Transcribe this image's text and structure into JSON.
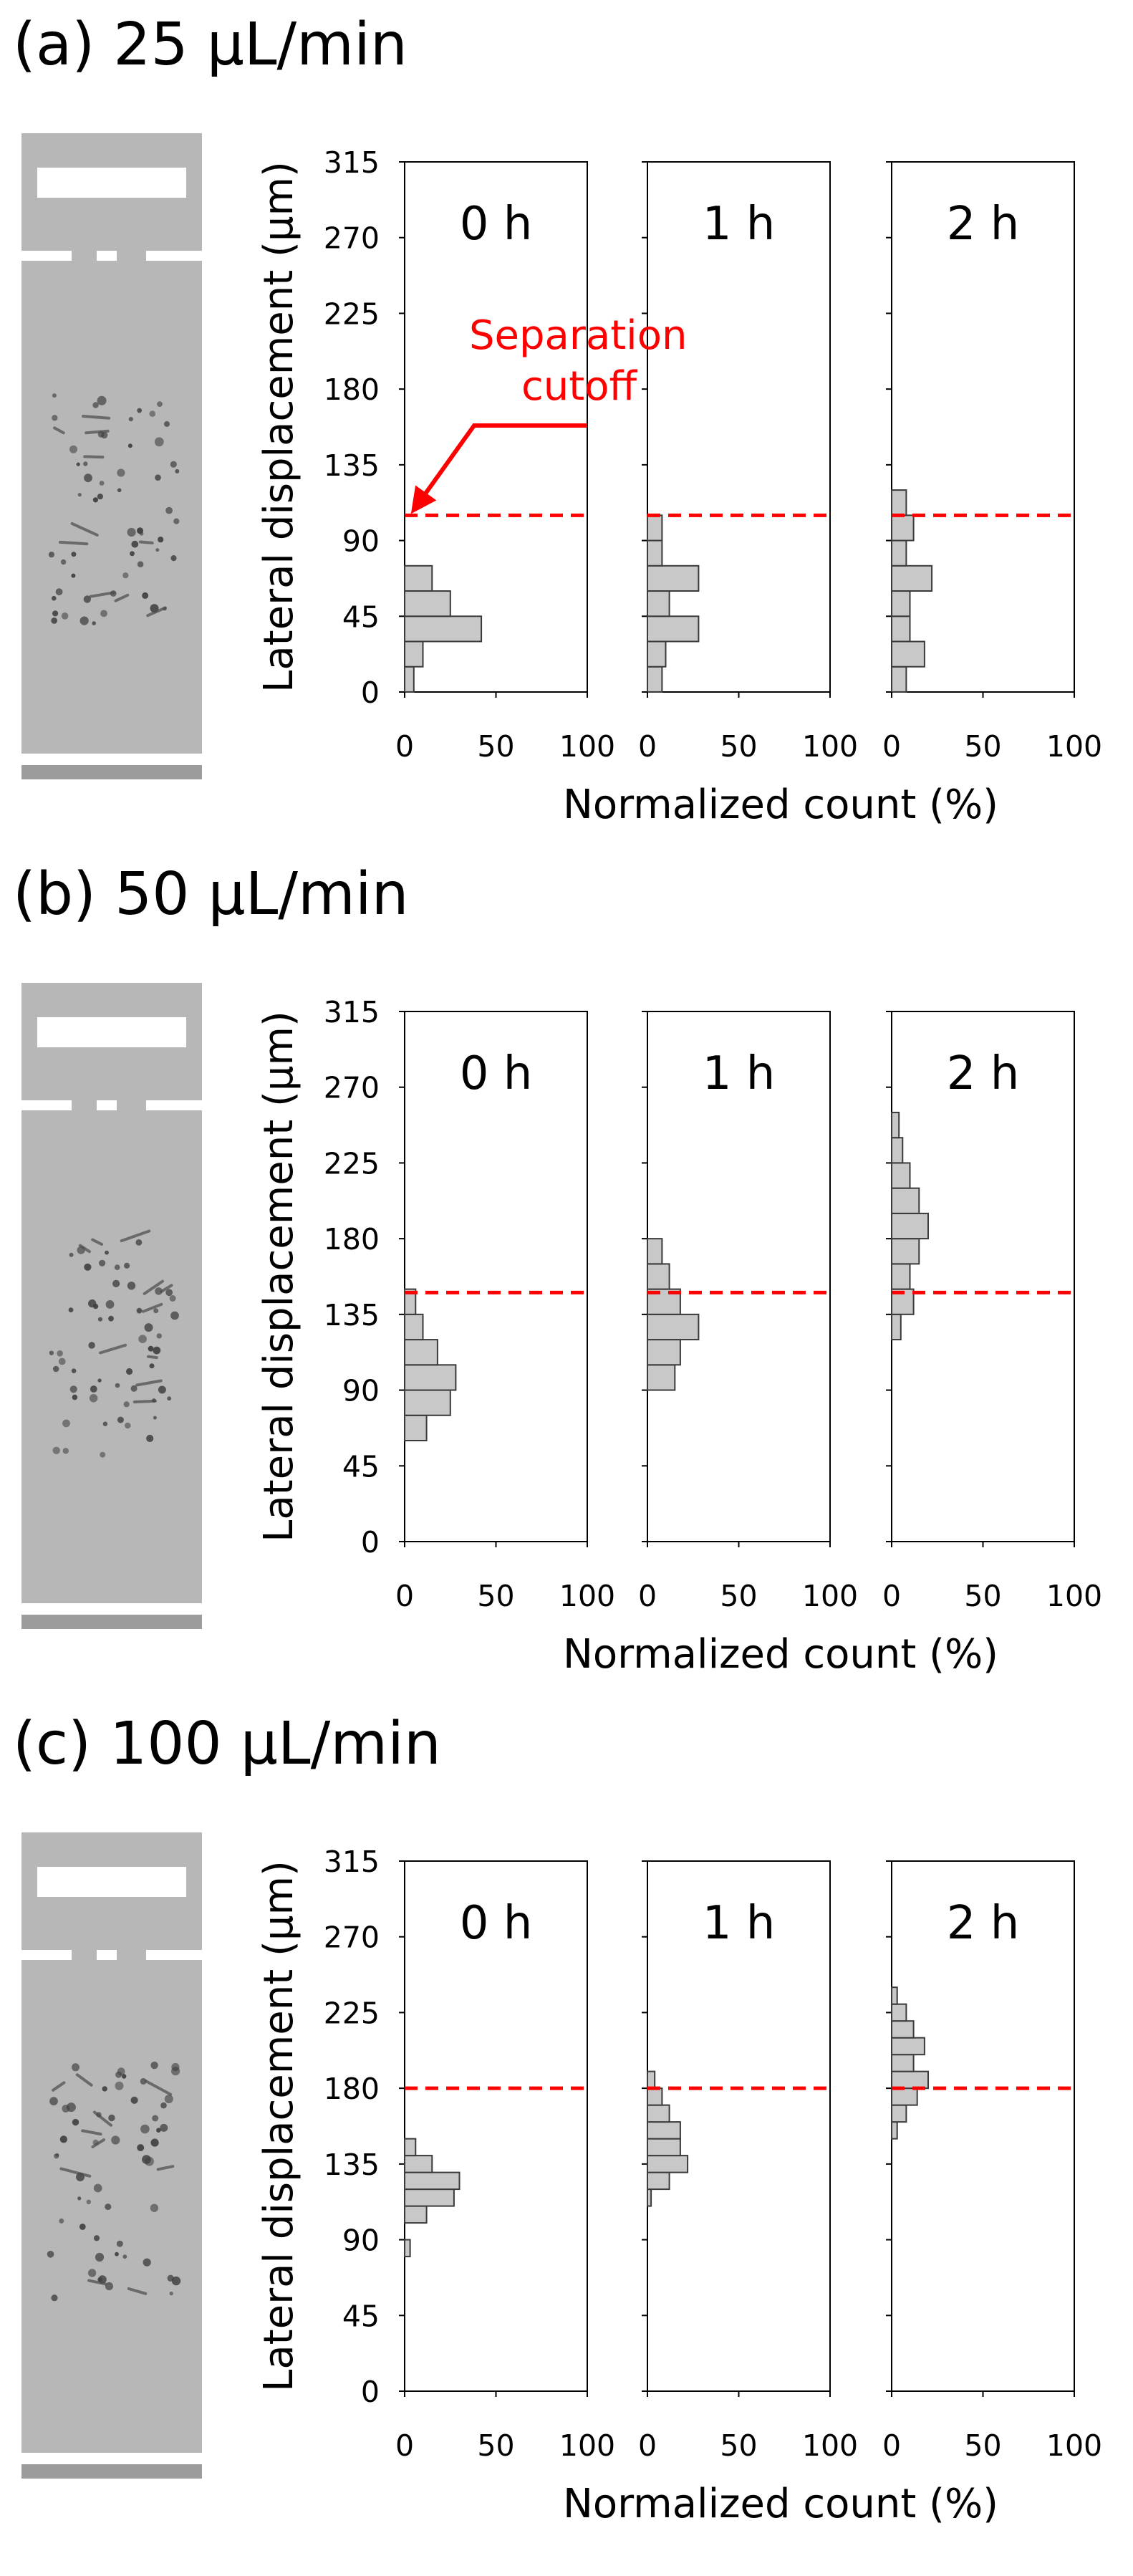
{
  "colors": {
    "bar_fill": "#c8c8c8",
    "bar_stroke": "#3a3a3a",
    "cutoff": "#ff0000",
    "annotation": "#ff0000",
    "image_bg": "#b7b7b7",
    "axis": "#000000"
  },
  "chart_data": [
    {
      "type": "bar",
      "orientation": "horizontal",
      "title": "(a) 25 μL/min",
      "ylabel": "Lateral displacement (μm)",
      "xlabel": "Normalized count (%)",
      "yticks": [
        0,
        45,
        90,
        135,
        180,
        225,
        270,
        315
      ],
      "xticks": [
        0,
        50,
        100
      ],
      "ylim": [
        0,
        315
      ],
      "xlim": [
        0,
        100
      ],
      "bin_width": 15,
      "cutoff": 105,
      "annotation": "Separation cutoff",
      "series": [
        {
          "name": "0 h",
          "bins": [
            0,
            15,
            30,
            45,
            60,
            75,
            90
          ],
          "values": [
            5,
            10,
            42,
            25,
            15,
            0,
            0
          ]
        },
        {
          "name": "1 h",
          "bins": [
            0,
            15,
            30,
            45,
            60,
            75,
            90,
            105,
            120,
            135
          ],
          "values": [
            8,
            10,
            28,
            12,
            28,
            8,
            8,
            0,
            0,
            0
          ]
        },
        {
          "name": "2 h",
          "bins": [
            0,
            15,
            30,
            45,
            60,
            75,
            90,
            105,
            120,
            135,
            150,
            165
          ],
          "values": [
            8,
            18,
            10,
            10,
            22,
            8,
            12,
            8,
            0,
            0,
            0,
            0
          ]
        }
      ]
    },
    {
      "type": "bar",
      "orientation": "horizontal",
      "title": "(b) 50 μL/min",
      "ylabel": "Lateral displacement (μm)",
      "xlabel": "Normalized count (%)",
      "yticks": [
        0,
        45,
        90,
        135,
        180,
        225,
        270,
        315
      ],
      "xticks": [
        0,
        50,
        100
      ],
      "ylim": [
        0,
        315
      ],
      "xlim": [
        0,
        100
      ],
      "bin_width": 15,
      "cutoff": 148,
      "series": [
        {
          "name": "0 h",
          "bins": [
            60,
            75,
            90,
            105,
            120,
            135
          ],
          "values": [
            12,
            25,
            28,
            18,
            10,
            6
          ]
        },
        {
          "name": "1 h",
          "bins": [
            90,
            105,
            120,
            135,
            150,
            165
          ],
          "values": [
            15,
            18,
            28,
            18,
            12,
            8
          ]
        },
        {
          "name": "2 h",
          "bins": [
            120,
            135,
            150,
            165,
            180,
            195,
            210,
            225,
            240
          ],
          "values": [
            5,
            12,
            10,
            15,
            20,
            15,
            10,
            6,
            4
          ]
        }
      ]
    },
    {
      "type": "bar",
      "orientation": "horizontal",
      "title": "(c) 100 μL/min",
      "ylabel": "Lateral displacement (μm)",
      "xlabel": "Normalized count (%)",
      "yticks": [
        0,
        45,
        90,
        135,
        180,
        225,
        270,
        315
      ],
      "xticks": [
        0,
        50,
        100
      ],
      "ylim": [
        0,
        315
      ],
      "xlim": [
        0,
        100
      ],
      "bin_width": 10,
      "cutoff": 180,
      "series": [
        {
          "name": "0 h",
          "bins": [
            80,
            90,
            100,
            110,
            120,
            130,
            140,
            150,
            160
          ],
          "values": [
            3,
            0,
            12,
            27,
            30,
            15,
            6,
            0,
            0
          ]
        },
        {
          "name": "1 h",
          "bins": [
            110,
            120,
            130,
            140,
            150,
            160,
            170,
            180,
            190,
            200
          ],
          "values": [
            2,
            12,
            22,
            18,
            18,
            12,
            8,
            4,
            0,
            0
          ]
        },
        {
          "name": "2 h",
          "bins": [
            150,
            160,
            170,
            180,
            190,
            200,
            210,
            220,
            230,
            240,
            250
          ],
          "values": [
            3,
            8,
            14,
            20,
            12,
            18,
            12,
            8,
            3,
            0,
            0
          ]
        }
      ]
    }
  ]
}
